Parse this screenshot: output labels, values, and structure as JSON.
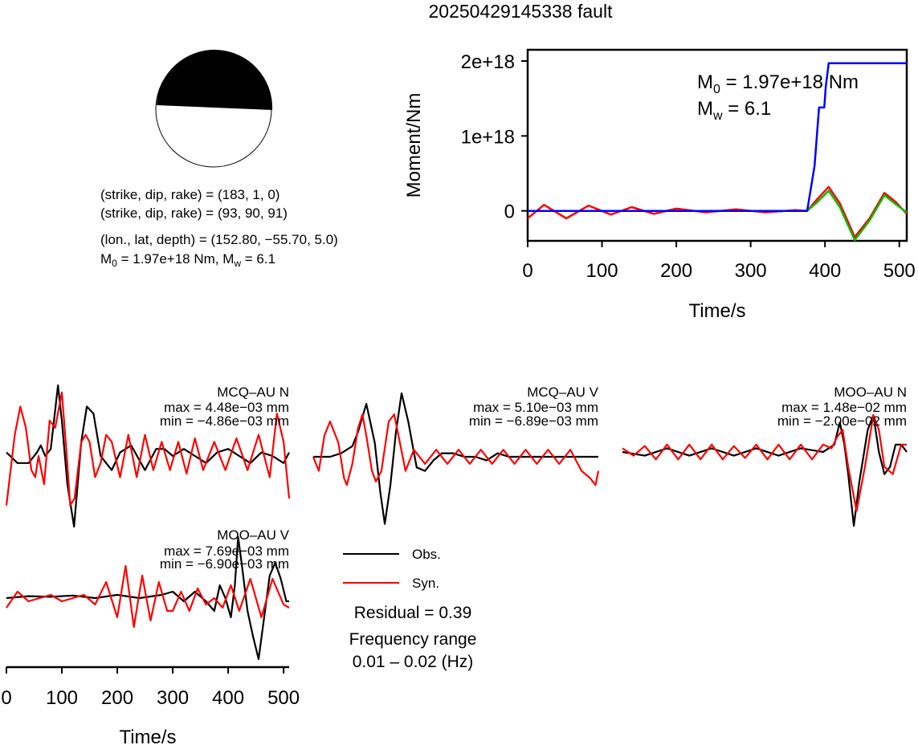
{
  "title": "20250429145338 fault",
  "source_params": {
    "line1": "(strike, dip, rake) = (183, 1, 0)",
    "line2": "(strike, dip, rake) = (93, 90, 91)",
    "line3": "(lon., lat, depth) = (152.80, −55.70, 5.0)",
    "m0_label": "M",
    "m0_sub": "0",
    "m0_rest": " = 1.97e+18 Nm, M",
    "mw_sub": "w",
    "mw_rest": " = 6.1"
  },
  "colors": {
    "obs": "#000000",
    "syn": "#ff0000",
    "moment": "#0000ff",
    "green": "#00c000"
  },
  "legend": {
    "obs": "Obs.",
    "syn": "Syn.",
    "residual": "Residual = 0.39",
    "freq_title": "Frequency range",
    "freq_value": "0.01 – 0.02 (Hz)"
  },
  "chart_data": [
    {
      "type": "line",
      "ylabel": "Moment/Nm",
      "xlabel": "Time/s",
      "xlim": [
        0,
        510
      ],
      "ylim": [
        -4e+17,
        2.15e+18
      ],
      "xticks": [
        "0",
        "100",
        "200",
        "300",
        "400",
        "500"
      ],
      "yticks": [
        "0",
        "1e+18",
        "2e+18"
      ],
      "annotation": {
        "m0_label": "M",
        "m0_sub": "0",
        "m0_rest": " = 1.97e+18 Nm",
        "mw_label": "M",
        "mw_sub": "w",
        "mw_rest": " = 6.1"
      },
      "series": [
        {
          "color": "blue",
          "x": [
            0,
            376,
            386,
            392,
            399,
            401,
            405,
            510
          ],
          "y": [
            0,
            0,
            6e+17,
            1.38e+18,
            1.38e+18,
            1.65e+18,
            1.97e+18,
            1.97e+18
          ]
        },
        {
          "color": "red",
          "x": [
            0,
            22,
            52,
            82,
            112,
            140,
            170,
            200,
            240,
            280,
            320,
            360,
            376,
            390,
            405,
            420,
            440,
            460,
            480,
            495,
            510
          ],
          "y": [
            -1e+17,
            8e+16,
            -1e+17,
            7e+16,
            -5e+16,
            5e+16,
            -4e+16,
            3e+16,
            -2e+16,
            2e+16,
            -2e+16,
            1e+16,
            0,
            1.6e+17,
            3.2e+17,
            1e+17,
            -3.5e+17,
            -1e+17,
            2.4e+17,
            1.2e+17,
            -4e+16
          ]
        },
        {
          "color": "green",
          "x": [
            376,
            390,
            405,
            420,
            440,
            460,
            480,
            495,
            510
          ],
          "y": [
            0,
            1.2e+17,
            2.7e+17,
            5e+16,
            -3.9e+17,
            -1.3e+17,
            2.1e+17,
            9e+16,
            -2e+16
          ]
        }
      ]
    },
    {
      "type": "line",
      "station": "MCQ–AU N",
      "max": "max = 4.48e−03 mm",
      "min": "min = −4.86e−03 mm",
      "xlim": [
        0,
        510
      ],
      "ylim": [
        -1,
        1
      ],
      "series": [
        {
          "name": "Obs.",
          "x": [
            0,
            20,
            40,
            55,
            62,
            70,
            80,
            93,
            100,
            110,
            122,
            135,
            145,
            157,
            170,
            190,
            205,
            225,
            250,
            270,
            285,
            300,
            320,
            340,
            360,
            380,
            400,
            420,
            440,
            460,
            480,
            500,
            510
          ],
          "y": [
            0.05,
            -0.1,
            -0.1,
            0.05,
            0.15,
            0.0,
            0.1,
            1.0,
            0.5,
            -0.4,
            -1.0,
            0.2,
            0.7,
            0.6,
            0.0,
            -0.2,
            0.05,
            0.15,
            -0.2,
            0.1,
            0.1,
            0.0,
            0.1,
            0.0,
            -0.1,
            0.05,
            0.1,
            0.0,
            -0.1,
            0.05,
            0.0,
            -0.1,
            0.05
          ]
        },
        {
          "name": "Syn.",
          "x": [
            0,
            15,
            25,
            35,
            45,
            52,
            58,
            68,
            78,
            88,
            100,
            108,
            115,
            123,
            135,
            143,
            150,
            160,
            170,
            180,
            190,
            205,
            220,
            235,
            250,
            265,
            280,
            295,
            310,
            325,
            340,
            355,
            375,
            395,
            415,
            435,
            455,
            475,
            488,
            500,
            510
          ],
          "y": [
            -0.7,
            0.3,
            0.7,
            0.4,
            -0.2,
            -0.3,
            0.0,
            -0.4,
            0.5,
            0.4,
            0.9,
            0.1,
            -0.7,
            -0.6,
            0.2,
            0.3,
            0.2,
            -0.3,
            -0.1,
            0.3,
            0.2,
            -0.3,
            0.3,
            -0.3,
            0.3,
            -0.2,
            0.2,
            -0.2,
            0.2,
            -0.25,
            0.25,
            -0.2,
            0.2,
            -0.2,
            0.25,
            -0.2,
            0.3,
            -0.3,
            0.6,
            0.2,
            -0.6
          ]
        }
      ]
    },
    {
      "type": "line",
      "station": "MCQ–AU V",
      "max": "max = 5.10e−03 mm",
      "min": "min = −6.89e−03 mm",
      "xlim": [
        0,
        510
      ],
      "ylim": [
        -1,
        1
      ],
      "series": [
        {
          "name": "Obs.",
          "x": [
            0,
            30,
            50,
            70,
            80,
            95,
            110,
            120,
            128,
            138,
            148,
            158,
            170,
            185,
            200,
            215,
            230,
            250,
            270,
            290,
            310,
            330,
            350,
            370,
            390,
            410,
            430,
            450,
            470,
            490,
            510
          ],
          "y": [
            0.0,
            0.0,
            0.05,
            0.15,
            0.35,
            0.75,
            0.2,
            -0.5,
            -0.95,
            -0.4,
            0.35,
            0.9,
            0.5,
            -0.15,
            -0.2,
            -0.05,
            0.05,
            0.05,
            0.0,
            0.0,
            -0.05,
            0.05,
            0.0,
            0.0,
            0.0,
            0.0,
            0.0,
            0.0,
            0.0,
            0.0,
            0.0
          ]
        },
        {
          "name": "Syn.",
          "x": [
            0,
            10,
            20,
            30,
            45,
            55,
            60,
            70,
            80,
            88,
            95,
            105,
            112,
            122,
            135,
            145,
            155,
            165,
            180,
            200,
            220,
            240,
            260,
            280,
            300,
            320,
            340,
            360,
            380,
            400,
            420,
            440,
            460,
            480,
            495,
            505,
            510
          ],
          "y": [
            0.0,
            -0.2,
            0.3,
            0.5,
            0.2,
            -0.3,
            -0.4,
            -0.1,
            0.4,
            0.6,
            0.3,
            -0.2,
            -0.35,
            -0.2,
            0.5,
            0.6,
            0.2,
            -0.2,
            0.1,
            -0.1,
            0.1,
            -0.1,
            0.1,
            -0.1,
            0.1,
            -0.1,
            0.1,
            -0.1,
            0.1,
            -0.1,
            0.1,
            -0.1,
            0.1,
            -0.2,
            -0.3,
            -0.4,
            -0.2
          ]
        }
      ]
    },
    {
      "type": "line",
      "station": "MOO–AU N",
      "max": "max = 1.48e−02 mm",
      "min": "min = −2.00e−02 mm",
      "xlim": [
        0,
        510
      ],
      "ylim": [
        -1,
        1
      ],
      "series": [
        {
          "name": "Obs.",
          "x": [
            0,
            40,
            80,
            120,
            160,
            200,
            240,
            280,
            320,
            360,
            380,
            390,
            398,
            405,
            415,
            425,
            440,
            450,
            460,
            470,
            480,
            490,
            500,
            510
          ],
          "y": [
            0.0,
            -0.05,
            0.05,
            -0.05,
            0.05,
            -0.05,
            0.05,
            -0.05,
            0.05,
            0.0,
            0.1,
            0.4,
            0.1,
            -0.3,
            -1.0,
            -0.4,
            0.3,
            0.5,
            0.0,
            -0.3,
            -0.2,
            0.1,
            0.1,
            0.0
          ]
        },
        {
          "name": "Syn.",
          "x": [
            0,
            20,
            40,
            60,
            80,
            100,
            120,
            140,
            160,
            180,
            200,
            220,
            240,
            260,
            280,
            300,
            320,
            340,
            360,
            375,
            385,
            395,
            405,
            420,
            435,
            450,
            460,
            470,
            485,
            500,
            510
          ],
          "y": [
            0.05,
            -0.05,
            0.08,
            -0.1,
            0.1,
            -0.1,
            0.1,
            -0.1,
            0.1,
            -0.1,
            0.08,
            -0.08,
            0.1,
            -0.1,
            0.1,
            -0.1,
            0.1,
            -0.1,
            0.1,
            0.05,
            0.2,
            0.3,
            -0.2,
            -0.8,
            -0.2,
            0.5,
            0.3,
            -0.2,
            -0.3,
            0.1,
            0.1
          ]
        }
      ]
    },
    {
      "type": "line",
      "station": "MOO–AU V",
      "max": "max = 7.69e−03 mm",
      "min": "min = −6.90e−03 mm",
      "xlabel": "Time/s",
      "xlim": [
        0,
        510
      ],
      "ylim": [
        -1,
        1
      ],
      "xticks": [
        "0",
        "100",
        "200",
        "300",
        "400",
        "500"
      ],
      "series": [
        {
          "name": "Obs.",
          "x": [
            0,
            40,
            80,
            120,
            160,
            200,
            240,
            280,
            300,
            320,
            340,
            360,
            375,
            385,
            395,
            405,
            412,
            418,
            425,
            435,
            445,
            455,
            465,
            475,
            485,
            495,
            505,
            510
          ],
          "y": [
            0.0,
            0.03,
            0.02,
            0.04,
            0.0,
            0.05,
            0.0,
            0.05,
            0.1,
            -0.05,
            0.1,
            -0.05,
            -0.2,
            0.2,
            0.0,
            -0.3,
            0.2,
            0.95,
            0.5,
            -0.2,
            -0.6,
            -0.95,
            -0.3,
            0.35,
            0.55,
            0.3,
            -0.05,
            -0.05
          ]
        },
        {
          "name": "Syn.",
          "x": [
            0,
            20,
            40,
            60,
            80,
            100,
            120,
            140,
            160,
            180,
            200,
            215,
            230,
            245,
            260,
            275,
            290,
            300,
            315,
            330,
            345,
            360,
            375,
            390,
            405,
            420,
            440,
            460,
            480,
            500,
            510
          ],
          "y": [
            -0.15,
            0.1,
            -0.05,
            0.0,
            0.05,
            -0.05,
            0.0,
            0.05,
            -0.1,
            0.25,
            -0.3,
            0.5,
            -0.45,
            0.35,
            -0.35,
            0.25,
            -0.2,
            -0.2,
            0.1,
            -0.2,
            0.15,
            -0.1,
            0.0,
            -0.15,
            0.2,
            -0.2,
            0.3,
            -0.3,
            0.3,
            -0.1,
            -0.15
          ]
        }
      ]
    }
  ]
}
